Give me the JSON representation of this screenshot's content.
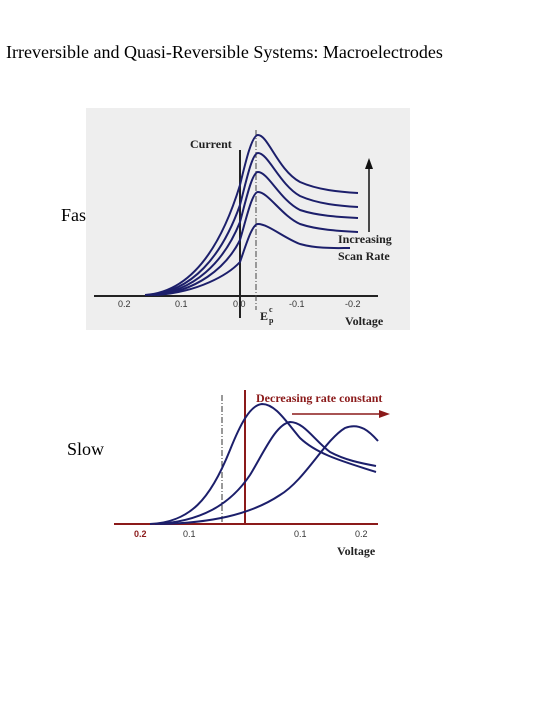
{
  "title": "Irreversible and Quasi-Reversible Systems: Macroelectrodes",
  "fast": {
    "side_label": "Fast",
    "current_label": "Current",
    "annotation_line1": "Increasing",
    "annotation_line2": "Scan Rate",
    "axis_label": "Voltage",
    "ep_label": "E",
    "ep_sup": "c",
    "ep_sub": "p",
    "ticks": [
      "0.2",
      "0.1",
      "0.0",
      "-0.1",
      "-0.2"
    ],
    "colors": {
      "curve": "#1c1f6b",
      "panel": "#eeeeee"
    }
  },
  "slow": {
    "side_label": "Slow",
    "header": "Decreasing rate constant",
    "axis_label": "Voltage",
    "ticks": [
      "0.2",
      "0.1",
      "0.1",
      "0.2"
    ],
    "colors": {
      "curve": "#1c1f6b",
      "accent": "#8b1a1a"
    }
  }
}
